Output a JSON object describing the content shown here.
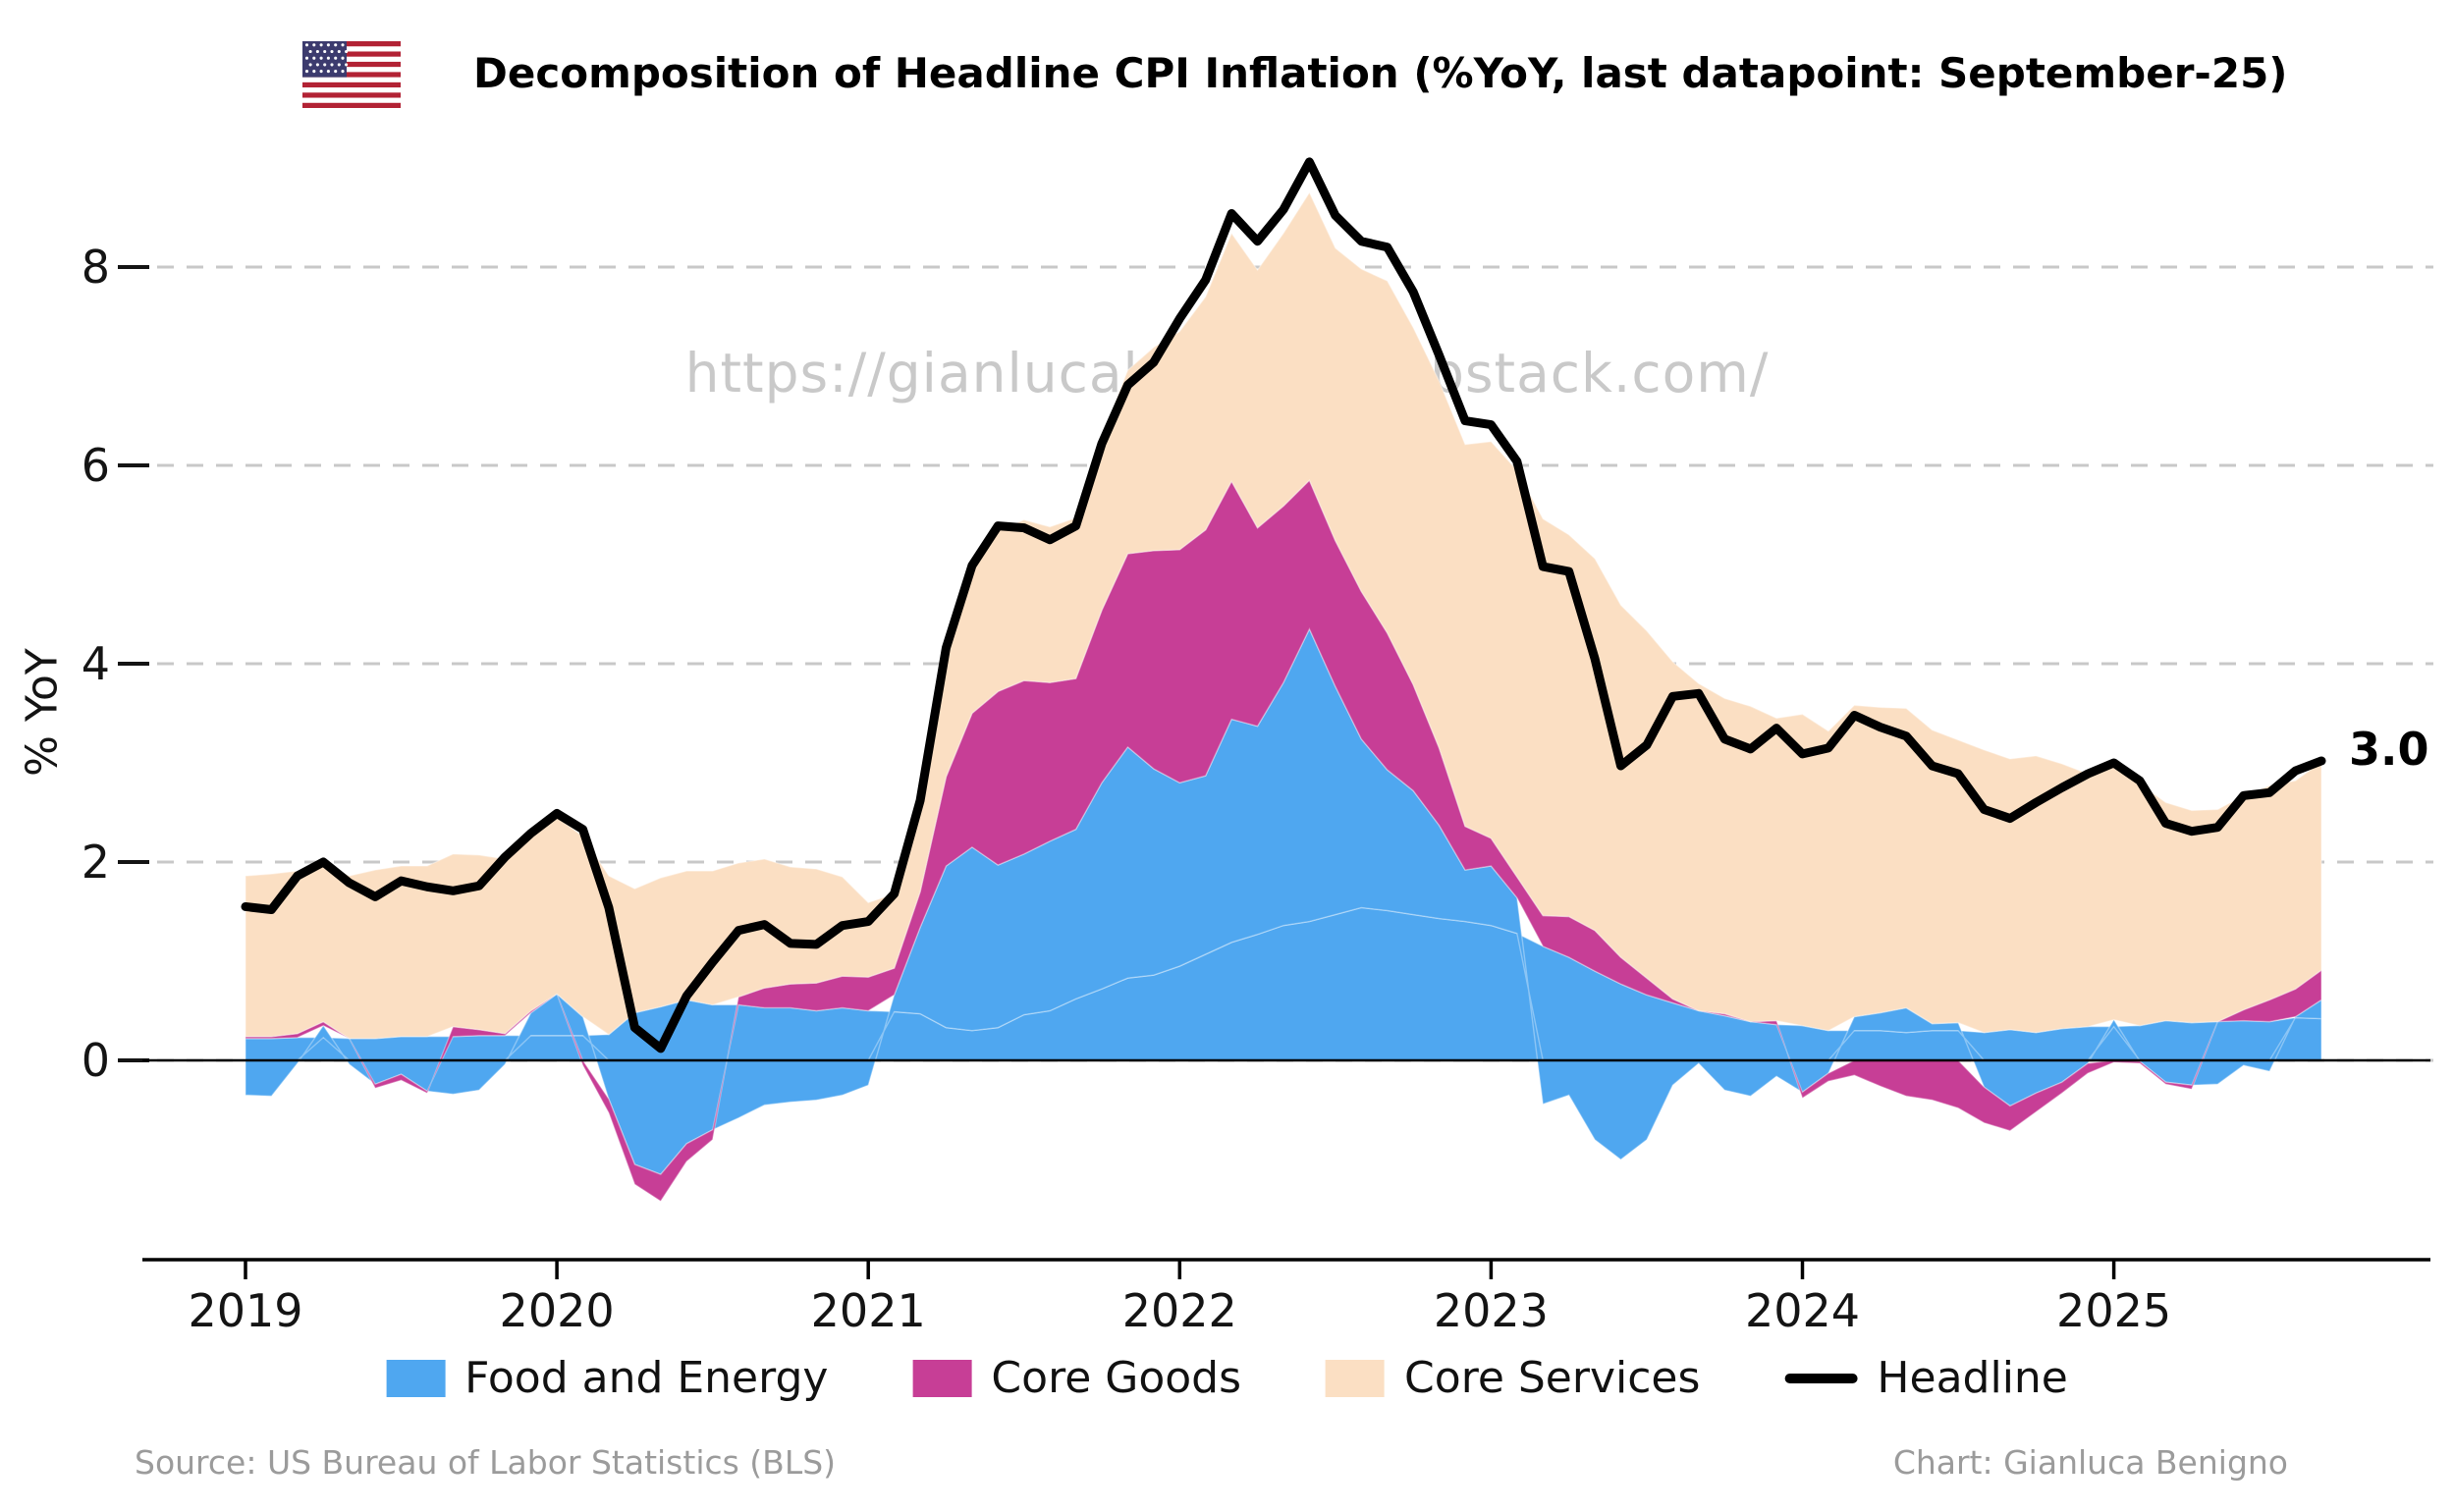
{
  "title": "Decomposition of Headline CPI Inflation (%YoY, last datapoint: September-25)",
  "flag_icon": "us-flag-icon",
  "watermark": "https://gianlucabenigno.substack.com/",
  "end_label": "3.0",
  "footer": {
    "source": "Source: US Bureau of Labor Statistics (BLS)",
    "credit": "Chart: Gianluca Benigno"
  },
  "axes": {
    "ylabel": "% YoY",
    "yticks": [
      0,
      2,
      4,
      6,
      8
    ],
    "xticks": [
      "2019",
      "2020",
      "2021",
      "2022",
      "2023",
      "2024",
      "2025"
    ]
  },
  "colors": {
    "food_energy": "#4fa7f0",
    "core_goods": "#c73e96",
    "core_services": "#fbdfc3",
    "headline": "#000000",
    "gridline": "#c8c8c8",
    "watermark": "#c9c9c9",
    "footer_text": "#9b9b9b"
  },
  "legend": [
    {
      "label": "Food and Energy",
      "swatch": "rect",
      "color": "#4fa7f0"
    },
    {
      "label": "Core Goods",
      "swatch": "rect",
      "color": "#c73e96"
    },
    {
      "label": "Core Services",
      "swatch": "rect",
      "color": "#fbdfc3"
    },
    {
      "label": "Headline",
      "swatch": "line",
      "color": "#000000"
    }
  ],
  "chart_data": {
    "type": "area",
    "subtype": "stacked-contribution with line overlay",
    "x_start": "2019-01",
    "x_end": "2025-09",
    "frequency": "monthly",
    "n_points": 81,
    "ylim": [
      -1.96,
      9.35
    ],
    "grid": "dashed horizontal at yticks",
    "legend_position": "bottom center",
    "stack_order": [
      "food",
      "energy",
      "core_goods",
      "core_services"
    ],
    "series": [
      {
        "key": "food",
        "legend": "Food and Energy",
        "color": "#4fa7f0",
        "values": [
          0.22,
          0.22,
          0.23,
          0.23,
          0.22,
          0.22,
          0.24,
          0.24,
          0.24,
          0.25,
          0.25,
          0.25,
          0.25,
          0.25,
          0.26,
          0.48,
          0.54,
          0.61,
          0.56,
          0.56,
          0.53,
          0.53,
          0.5,
          0.53,
          0.5,
          0.49,
          0.47,
          0.33,
          0.3,
          0.33,
          0.46,
          0.5,
          0.62,
          0.72,
          0.83,
          0.86,
          0.95,
          1.07,
          1.19,
          1.27,
          1.36,
          1.4,
          1.47,
          1.54,
          1.51,
          1.47,
          1.43,
          1.4,
          1.36,
          1.28,
          1.15,
          1.04,
          0.9,
          0.77,
          0.66,
          0.58,
          0.5,
          0.45,
          0.39,
          0.36,
          0.35,
          0.3,
          0.3,
          0.3,
          0.28,
          0.3,
          0.3,
          0.28,
          0.31,
          0.28,
          0.32,
          0.34,
          0.34,
          0.35,
          0.4,
          0.38,
          0.39,
          0.4,
          0.39,
          0.43,
          0.42
        ]
      },
      {
        "key": "energy",
        "legend": "Food and Energy",
        "color": "#4fa7f0",
        "values": [
          -0.35,
          -0.36,
          -0.03,
          0.12,
          -0.04,
          -0.24,
          -0.14,
          -0.31,
          -0.34,
          -0.3,
          -0.04,
          0.23,
          0.42,
          0.19,
          -0.39,
          -1.05,
          -1.15,
          -0.84,
          -0.7,
          -0.58,
          -0.45,
          -0.42,
          -0.4,
          -0.35,
          -0.25,
          0.17,
          0.87,
          1.63,
          1.85,
          1.64,
          1.62,
          1.71,
          1.71,
          2.08,
          2.33,
          2.08,
          1.85,
          1.8,
          2.25,
          2.1,
          2.45,
          2.95,
          2.3,
          1.7,
          1.42,
          1.25,
          0.94,
          0.52,
          0.6,
          0.36,
          -0.44,
          -0.35,
          -0.8,
          -1.0,
          -0.8,
          -0.25,
          -0.03,
          -0.3,
          -0.36,
          -0.16,
          -0.32,
          -0.13,
          0.14,
          0.18,
          0.25,
          0.07,
          0.08,
          -0.27,
          -0.46,
          -0.33,
          -0.22,
          -0.03,
          0.07,
          -0.01,
          -0.22,
          -0.25,
          -0.24,
          -0.05,
          -0.11,
          0.01,
          0.19
        ]
      },
      {
        "key": "core_goods",
        "legend": "Core Goods",
        "color": "#c73e96",
        "values": [
          0.02,
          0.02,
          0.04,
          0.04,
          0.0,
          -0.04,
          -0.06,
          -0.02,
          0.1,
          0.06,
          0.02,
          0.02,
          0.0,
          -0.05,
          -0.14,
          -0.2,
          -0.27,
          -0.18,
          -0.1,
          0.08,
          0.2,
          0.24,
          0.28,
          0.32,
          0.34,
          0.27,
          0.36,
          0.9,
          1.35,
          1.75,
          1.75,
          1.6,
          1.52,
          1.74,
          1.95,
          2.2,
          2.35,
          2.48,
          2.4,
          2.0,
          1.78,
          1.5,
          1.47,
          1.49,
          1.38,
          1.07,
          0.78,
          0.44,
          0.28,
          0.21,
          0.31,
          0.41,
          0.41,
          0.27,
          0.17,
          0.04,
          0.0,
          0.02,
          0.0,
          0.04,
          -0.06,
          -0.08,
          -0.15,
          -0.26,
          -0.36,
          -0.4,
          -0.48,
          -0.36,
          -0.25,
          -0.19,
          -0.11,
          -0.1,
          -0.02,
          -0.02,
          -0.02,
          -0.04,
          0.0,
          0.11,
          0.22,
          0.28,
          0.3
        ]
      },
      {
        "key": "core_services",
        "legend": "Core Services",
        "color": "#fbdfc3",
        "values": [
          1.62,
          1.64,
          1.64,
          1.6,
          1.64,
          1.7,
          1.72,
          1.72,
          1.74,
          1.76,
          1.76,
          1.76,
          1.78,
          1.82,
          1.6,
          1.25,
          1.3,
          1.3,
          1.35,
          1.35,
          1.3,
          1.18,
          1.15,
          1.0,
          0.75,
          0.75,
          0.9,
          1.4,
          1.55,
          1.62,
          1.62,
          1.57,
          1.62,
          1.75,
          1.85,
          2.05,
          2.2,
          2.35,
          2.5,
          2.6,
          2.75,
          2.9,
          2.95,
          3.25,
          3.55,
          3.6,
          3.7,
          3.85,
          4.0,
          4.1,
          4.0,
          3.85,
          3.75,
          3.55,
          3.5,
          3.4,
          3.3,
          3.18,
          3.18,
          3.05,
          3.14,
          3.02,
          3.14,
          3.08,
          3.02,
          2.96,
          2.85,
          2.85,
          2.73,
          2.79,
          2.67,
          2.55,
          2.56,
          2.44,
          2.2,
          2.14,
          2.14,
          2.16,
          2.16,
          2.1,
          2.1
        ]
      }
    ],
    "line": {
      "key": "headline",
      "legend": "Headline",
      "color": "#000000",
      "values": [
        1.55,
        1.52,
        1.86,
        2.0,
        1.79,
        1.65,
        1.81,
        1.75,
        1.71,
        1.76,
        2.05,
        2.29,
        2.49,
        2.33,
        1.54,
        0.33,
        0.12,
        0.65,
        0.99,
        1.31,
        1.37,
        1.18,
        1.17,
        1.36,
        1.4,
        1.68,
        2.62,
        4.16,
        4.99,
        5.39,
        5.37,
        5.25,
        5.39,
        6.22,
        6.81,
        7.04,
        7.48,
        7.87,
        8.54,
        8.26,
        8.58,
        9.06,
        8.52,
        8.26,
        8.2,
        7.75,
        7.11,
        6.45,
        6.41,
        6.04,
        4.98,
        4.93,
        4.05,
        2.97,
        3.18,
        3.67,
        3.7,
        3.24,
        3.14,
        3.35,
        3.09,
        3.15,
        3.48,
        3.36,
        3.27,
        2.97,
        2.89,
        2.53,
        2.44,
        2.6,
        2.75,
        2.89,
        3.0,
        2.82,
        2.39,
        2.31,
        2.35,
        2.67,
        2.7,
        2.92,
        3.02
      ]
    }
  }
}
